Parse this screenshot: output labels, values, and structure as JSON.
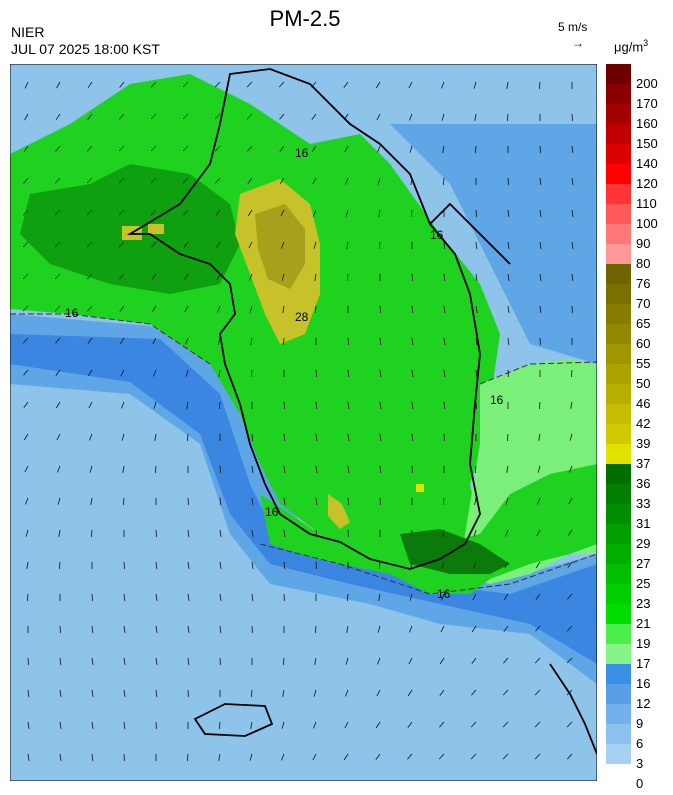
{
  "header": {
    "title": "PM-2.5",
    "agency": "NIER",
    "timestamp": "JUL 07 2025 18:00 KST",
    "wind_scale_label": "5 m/s",
    "wind_arrow_glyph": "→",
    "unit_base": "μg/m",
    "unit_exp": "3"
  },
  "map": {
    "contour_labels": [
      "16",
      "16",
      "16",
      "16",
      "28",
      "16",
      "16"
    ],
    "colors": {
      "sea_light": "#8ec3ea",
      "sea_mid": "#5ea6e6",
      "sea_dark": "#3b86e0",
      "green_light": "#7af07a",
      "green_mid": "#1fd21f",
      "green_dark": "#0fa00f",
      "green_deep": "#0a7a0a",
      "yellow": "#c8c22a",
      "yellow_dark": "#a6a01a"
    }
  },
  "legend": {
    "labels": [
      "200",
      "170",
      "160",
      "150",
      "140",
      "120",
      "110",
      "100",
      "90",
      "80",
      "76",
      "70",
      "65",
      "60",
      "55",
      "50",
      "46",
      "42",
      "39",
      "37",
      "36",
      "33",
      "31",
      "29",
      "27",
      "25",
      "23",
      "21",
      "19",
      "17",
      "16",
      "12",
      "9",
      "6",
      "3",
      "0"
    ],
    "colors": [
      "#6e0000",
      "#8a0000",
      "#a30000",
      "#c00000",
      "#dc0000",
      "#ff0000",
      "#ff3434",
      "#ff5858",
      "#ff7878",
      "#ff9898",
      "#6e6400",
      "#7a7000",
      "#867c00",
      "#928800",
      "#a09600",
      "#aca200",
      "#b8ae00",
      "#c6bc00",
      "#d2ca00",
      "#e4e000",
      "#006e00",
      "#007e00",
      "#008e00",
      "#009e00",
      "#00ae00",
      "#00be00",
      "#00ce00",
      "#00de00",
      "#4cee4c",
      "#88f488",
      "#3a8ee6",
      "#5a9ee8",
      "#74b0ec",
      "#8ec0f0",
      "#a6d0f4"
    ]
  }
}
